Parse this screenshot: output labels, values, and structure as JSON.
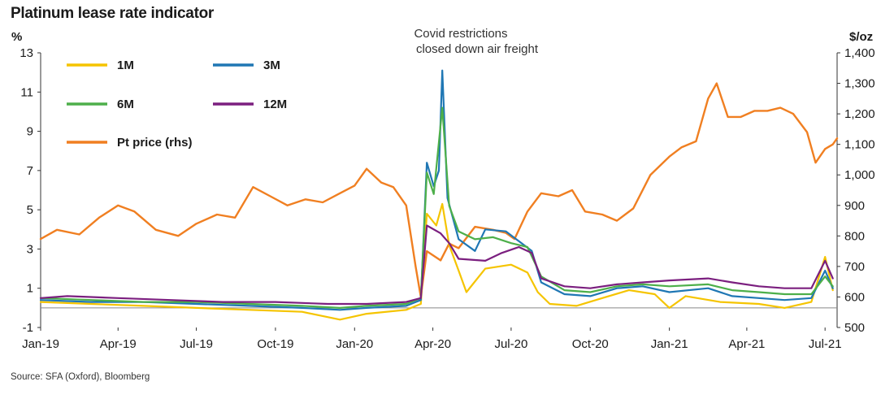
{
  "chart_data": {
    "type": "line",
    "title": "Platinum lease rate indicator",
    "source": "Source: SFA (Oxford), Bloomberg",
    "left_axis": {
      "unit": "%",
      "ylim": [
        -1,
        13
      ],
      "ticks": [
        "13",
        "11",
        "9",
        "7",
        "5",
        "3",
        "1",
        "-1"
      ],
      "tick_values": [
        13,
        11,
        9,
        7,
        5,
        3,
        1,
        -1
      ]
    },
    "right_axis": {
      "unit": "$/oz",
      "ylim": [
        500,
        1400
      ],
      "ticks": [
        "1,400",
        "1,300",
        "1,200",
        "1,100",
        "1,000",
        "900",
        "800",
        "700",
        "600",
        "500"
      ],
      "tick_values": [
        1400,
        1300,
        1200,
        1100,
        1000,
        900,
        800,
        700,
        600,
        500
      ]
    },
    "x_axis": {
      "range": [
        "2019-01-01",
        "2021-07-15"
      ],
      "ticks": [
        {
          "label": "Jan-19",
          "date": "2019-01-01"
        },
        {
          "label": "Apr-19",
          "date": "2019-04-01"
        },
        {
          "label": "Jul-19",
          "date": "2019-07-01"
        },
        {
          "label": "Oct-19",
          "date": "2019-10-01"
        },
        {
          "label": "Jan-20",
          "date": "2020-01-01"
        },
        {
          "label": "Apr-20",
          "date": "2020-04-01"
        },
        {
          "label": "Jul-20",
          "date": "2020-07-01"
        },
        {
          "label": "Oct-20",
          "date": "2020-10-01"
        },
        {
          "label": "Jan-21",
          "date": "2021-01-01"
        },
        {
          "label": "Apr-21",
          "date": "2021-04-01"
        },
        {
          "label": "Jul-21",
          "date": "2021-07-01"
        }
      ]
    },
    "annotation": {
      "lines": [
        "Covid restrictions",
        "closed down air freight"
      ],
      "x": "2020-04-12",
      "y": 12.1
    },
    "legend_position": "top-left",
    "grid": false,
    "series": [
      {
        "name": "1M",
        "color": "#f5c400",
        "axis": "left",
        "points": [
          [
            "2019-01-01",
            0.3
          ],
          [
            "2019-03-01",
            0.2
          ],
          [
            "2019-05-01",
            0.1
          ],
          [
            "2019-07-01",
            0.0
          ],
          [
            "2019-09-01",
            -0.1
          ],
          [
            "2019-11-01",
            -0.2
          ],
          [
            "2019-12-15",
            -0.6
          ],
          [
            "2020-01-15",
            -0.3
          ],
          [
            "2020-03-01",
            -0.1
          ],
          [
            "2020-03-18",
            0.2
          ],
          [
            "2020-03-25",
            4.8
          ],
          [
            "2020-04-05",
            4.2
          ],
          [
            "2020-04-12",
            5.3
          ],
          [
            "2020-04-20",
            3.2
          ],
          [
            "2020-05-01",
            1.9
          ],
          [
            "2020-05-10",
            0.8
          ],
          [
            "2020-06-01",
            2.0
          ],
          [
            "2020-07-01",
            2.2
          ],
          [
            "2020-07-20",
            1.8
          ],
          [
            "2020-08-01",
            0.8
          ],
          [
            "2020-08-15",
            0.2
          ],
          [
            "2020-09-15",
            0.1
          ],
          [
            "2020-10-15",
            0.5
          ],
          [
            "2020-11-15",
            0.9
          ],
          [
            "2020-12-15",
            0.7
          ],
          [
            "2021-01-01",
            0.0
          ],
          [
            "2021-01-20",
            0.6
          ],
          [
            "2021-03-01",
            0.3
          ],
          [
            "2021-04-15",
            0.2
          ],
          [
            "2021-05-15",
            0.0
          ],
          [
            "2021-06-15",
            0.3
          ],
          [
            "2021-07-01",
            2.6
          ],
          [
            "2021-07-10",
            0.9
          ]
        ]
      },
      {
        "name": "3M",
        "color": "#1f77b4",
        "axis": "left",
        "points": [
          [
            "2019-01-01",
            0.4
          ],
          [
            "2019-03-01",
            0.3
          ],
          [
            "2019-05-01",
            0.3
          ],
          [
            "2019-07-01",
            0.2
          ],
          [
            "2019-09-01",
            0.1
          ],
          [
            "2019-11-01",
            0.0
          ],
          [
            "2019-12-15",
            -0.1
          ],
          [
            "2020-01-15",
            0.0
          ],
          [
            "2020-03-01",
            0.1
          ],
          [
            "2020-03-18",
            0.4
          ],
          [
            "2020-03-25",
            7.4
          ],
          [
            "2020-04-02",
            6.2
          ],
          [
            "2020-04-08",
            7.0
          ],
          [
            "2020-04-12",
            12.1
          ],
          [
            "2020-04-18",
            5.6
          ],
          [
            "2020-05-01",
            3.5
          ],
          [
            "2020-05-20",
            2.9
          ],
          [
            "2020-06-01",
            4.0
          ],
          [
            "2020-06-25",
            3.9
          ],
          [
            "2020-07-10",
            3.4
          ],
          [
            "2020-07-25",
            2.9
          ],
          [
            "2020-08-05",
            1.3
          ],
          [
            "2020-09-01",
            0.7
          ],
          [
            "2020-10-01",
            0.6
          ],
          [
            "2020-11-01",
            1.0
          ],
          [
            "2020-12-01",
            1.1
          ],
          [
            "2021-01-01",
            0.8
          ],
          [
            "2021-02-15",
            1.0
          ],
          [
            "2021-03-15",
            0.6
          ],
          [
            "2021-04-15",
            0.5
          ],
          [
            "2021-05-15",
            0.4
          ],
          [
            "2021-06-15",
            0.5
          ],
          [
            "2021-07-01",
            1.9
          ],
          [
            "2021-07-10",
            1.0
          ]
        ]
      },
      {
        "name": "6M",
        "color": "#4daf4a",
        "axis": "left",
        "points": [
          [
            "2019-01-01",
            0.5
          ],
          [
            "2019-03-01",
            0.4
          ],
          [
            "2019-05-01",
            0.3
          ],
          [
            "2019-07-01",
            0.3
          ],
          [
            "2019-09-01",
            0.2
          ],
          [
            "2019-11-01",
            0.1
          ],
          [
            "2019-12-15",
            0.0
          ],
          [
            "2020-01-15",
            0.1
          ],
          [
            "2020-03-01",
            0.2
          ],
          [
            "2020-03-18",
            0.5
          ],
          [
            "2020-03-25",
            6.9
          ],
          [
            "2020-04-02",
            5.8
          ],
          [
            "2020-04-12",
            10.2
          ],
          [
            "2020-04-20",
            5.2
          ],
          [
            "2020-05-01",
            3.9
          ],
          [
            "2020-05-20",
            3.5
          ],
          [
            "2020-06-10",
            3.6
          ],
          [
            "2020-07-01",
            3.3
          ],
          [
            "2020-07-20",
            3.1
          ],
          [
            "2020-08-05",
            1.6
          ],
          [
            "2020-09-01",
            0.9
          ],
          [
            "2020-10-01",
            0.8
          ],
          [
            "2020-11-01",
            1.1
          ],
          [
            "2020-12-01",
            1.2
          ],
          [
            "2021-01-01",
            1.1
          ],
          [
            "2021-02-15",
            1.2
          ],
          [
            "2021-03-15",
            0.9
          ],
          [
            "2021-04-15",
            0.8
          ],
          [
            "2021-05-15",
            0.7
          ],
          [
            "2021-06-15",
            0.7
          ],
          [
            "2021-07-01",
            1.6
          ],
          [
            "2021-07-10",
            1.1
          ]
        ]
      },
      {
        "name": "12M",
        "color": "#7b1f7f",
        "axis": "left",
        "points": [
          [
            "2019-01-01",
            0.5
          ],
          [
            "2019-02-01",
            0.6
          ],
          [
            "2019-04-01",
            0.5
          ],
          [
            "2019-06-01",
            0.4
          ],
          [
            "2019-08-01",
            0.3
          ],
          [
            "2019-10-01",
            0.3
          ],
          [
            "2019-12-01",
            0.2
          ],
          [
            "2020-01-15",
            0.2
          ],
          [
            "2020-03-01",
            0.3
          ],
          [
            "2020-03-18",
            0.5
          ],
          [
            "2020-03-25",
            4.2
          ],
          [
            "2020-04-10",
            3.8
          ],
          [
            "2020-04-20",
            3.3
          ],
          [
            "2020-05-01",
            2.5
          ],
          [
            "2020-06-01",
            2.4
          ],
          [
            "2020-06-20",
            2.8
          ],
          [
            "2020-07-10",
            3.1
          ],
          [
            "2020-07-25",
            2.8
          ],
          [
            "2020-08-05",
            1.5
          ],
          [
            "2020-09-01",
            1.1
          ],
          [
            "2020-10-01",
            1.0
          ],
          [
            "2020-11-01",
            1.2
          ],
          [
            "2020-12-01",
            1.3
          ],
          [
            "2021-01-01",
            1.4
          ],
          [
            "2021-02-15",
            1.5
          ],
          [
            "2021-03-15",
            1.3
          ],
          [
            "2021-04-15",
            1.1
          ],
          [
            "2021-05-15",
            1.0
          ],
          [
            "2021-06-15",
            1.0
          ],
          [
            "2021-07-01",
            2.4
          ],
          [
            "2021-07-10",
            1.5
          ]
        ]
      },
      {
        "name": "Pt price (rhs)",
        "color": "#f07f21",
        "axis": "right",
        "points": [
          [
            "2019-01-01",
            790
          ],
          [
            "2019-01-20",
            820
          ],
          [
            "2019-02-15",
            805
          ],
          [
            "2019-03-10",
            860
          ],
          [
            "2019-04-01",
            900
          ],
          [
            "2019-04-20",
            880
          ],
          [
            "2019-05-15",
            820
          ],
          [
            "2019-06-10",
            800
          ],
          [
            "2019-07-01",
            840
          ],
          [
            "2019-07-25",
            870
          ],
          [
            "2019-08-15",
            860
          ],
          [
            "2019-09-05",
            960
          ],
          [
            "2019-09-25",
            930
          ],
          [
            "2019-10-15",
            900
          ],
          [
            "2019-11-05",
            920
          ],
          [
            "2019-11-25",
            910
          ],
          [
            "2019-12-15",
            940
          ],
          [
            "2020-01-01",
            965
          ],
          [
            "2020-01-15",
            1020
          ],
          [
            "2020-02-01",
            975
          ],
          [
            "2020-02-15",
            960
          ],
          [
            "2020-03-01",
            900
          ],
          [
            "2020-03-12",
            700
          ],
          [
            "2020-03-18",
            600
          ],
          [
            "2020-03-25",
            750
          ],
          [
            "2020-04-10",
            720
          ],
          [
            "2020-04-20",
            775
          ],
          [
            "2020-05-01",
            760
          ],
          [
            "2020-05-20",
            830
          ],
          [
            "2020-06-10",
            820
          ],
          [
            "2020-06-25",
            810
          ],
          [
            "2020-07-05",
            790
          ],
          [
            "2020-07-20",
            880
          ],
          [
            "2020-08-05",
            940
          ],
          [
            "2020-08-25",
            930
          ],
          [
            "2020-09-10",
            950
          ],
          [
            "2020-09-25",
            880
          ],
          [
            "2020-10-15",
            870
          ],
          [
            "2020-11-01",
            850
          ],
          [
            "2020-11-20",
            890
          ],
          [
            "2020-12-10",
            1000
          ],
          [
            "2021-01-01",
            1060
          ],
          [
            "2021-01-15",
            1090
          ],
          [
            "2021-02-01",
            1110
          ],
          [
            "2021-02-15",
            1250
          ],
          [
            "2021-02-25",
            1300
          ],
          [
            "2021-03-10",
            1190
          ],
          [
            "2021-03-25",
            1190
          ],
          [
            "2021-04-10",
            1210
          ],
          [
            "2021-04-25",
            1210
          ],
          [
            "2021-05-10",
            1220
          ],
          [
            "2021-05-25",
            1200
          ],
          [
            "2021-06-10",
            1140
          ],
          [
            "2021-06-20",
            1040
          ],
          [
            "2021-07-01",
            1085
          ],
          [
            "2021-07-10",
            1100
          ],
          [
            "2021-07-15",
            1120
          ]
        ]
      }
    ]
  }
}
